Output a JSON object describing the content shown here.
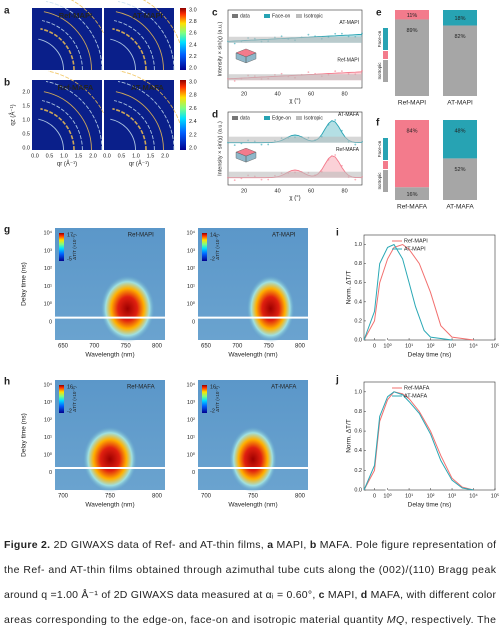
{
  "figure": {
    "panels": {
      "a": {
        "label": "a",
        "images": [
          "Ref-MAPI",
          "AT-MAPI"
        ],
        "colorbar_ticks": [
          "3.0",
          "2.8",
          "2.6",
          "2.4",
          "2.2",
          "2.0"
        ]
      },
      "b": {
        "label": "b",
        "images": [
          "Ref-MAFA",
          "AT-MAFA"
        ],
        "colorbar_ticks": [
          "3.0",
          "2.8",
          "2.6",
          "2.4",
          "2.2",
          "2.0"
        ],
        "y_label": "qz (Å⁻¹)",
        "yticks": [
          "0.0",
          "0.5",
          "1.0",
          "1.5",
          "2.0"
        ],
        "x_label": "qr (Å⁻¹)",
        "xticks": [
          "0.0",
          "0.5",
          "1.0",
          "1.5",
          "2.0"
        ]
      },
      "c": {
        "label": "c",
        "legend": [
          "data",
          "Face-on",
          "Isotropic"
        ],
        "curves": [
          "AT-MAPI",
          "Ref-MAPI"
        ],
        "y_label": "Intensity × sin(χ) (a.u.)",
        "x_label": "χ (°)",
        "xticks": [
          "20",
          "40",
          "60",
          "80"
        ]
      },
      "d": {
        "label": "d",
        "legend": [
          "data",
          "Edge-on",
          "Isotropic"
        ],
        "curves": [
          "AT-MAFA",
          "Ref-MAFA"
        ],
        "y_label": "Intensity × sin(χ) (a.u.)",
        "x_label": "χ (°)",
        "xticks": [
          "20",
          "40",
          "60",
          "80"
        ]
      },
      "e": {
        "label": "e",
        "categories": [
          "Ref-MAPI",
          "AT-MAPI"
        ],
        "series": [
          {
            "name": "Isotropic",
            "color": "#a6a6a6",
            "values": [
              89,
              82
            ],
            "value_labels": [
              "89%",
              "82%"
            ]
          },
          {
            "color": "#f37b8c",
            "values": [
              11,
              null
            ],
            "value_labels": [
              "11%",
              null
            ]
          },
          {
            "name": "Face-on",
            "color": "#27a3b3",
            "values": [
              null,
              18
            ],
            "value_labels": [
              null,
              "18%"
            ]
          }
        ]
      },
      "f": {
        "label": "f",
        "categories": [
          "Ref-MAFA",
          "AT-MAFA"
        ],
        "series": [
          {
            "name": "Isotropic",
            "color": "#a6a6a6",
            "values": [
              16,
              52
            ],
            "value_labels": [
              "16%",
              "52%"
            ]
          },
          {
            "color": "#f37b8c",
            "values": [
              84,
              null
            ],
            "value_labels": [
              "84%",
              null
            ]
          },
          {
            "name": "Face-on",
            "color": "#27a3b3",
            "values": [
              null,
              48
            ],
            "value_labels": [
              null,
              "48%"
            ]
          }
        ]
      },
      "g": {
        "label": "g",
        "maps": [
          {
            "name": "Ref-MAPI",
            "cmax": "17",
            "cmin": "-5"
          },
          {
            "name": "AT-MAPI",
            "cmax": "14",
            "cmin": "-2"
          }
        ],
        "colorbar_label": "ΔT/T (×10⁻³)",
        "y_label": "Delay time (ns)",
        "yticks": [
          "10⁴",
          "10³",
          "10²",
          "10¹",
          "10⁰",
          "0"
        ],
        "x_label": "Wavelength (nm)",
        "xticks": [
          "650",
          "700",
          "750",
          "800"
        ]
      },
      "h": {
        "label": "h",
        "maps": [
          {
            "name": "Ref-MAFA",
            "cmax": "16",
            "cmin": "-2"
          },
          {
            "name": "AT-MAFA",
            "cmax": "16",
            "cmin": "-2"
          }
        ],
        "colorbar_label": "ΔT/T (×10⁻³)",
        "y_label": "Delay time (ns)",
        "yticks": [
          "10⁴",
          "10³",
          "10²",
          "10¹",
          "10⁰",
          "0"
        ],
        "x_label": "Wavelength (nm)",
        "xticks": [
          "700",
          "750",
          "800"
        ]
      },
      "i": {
        "label": "i",
        "y_label": "Norm. ΔT/T",
        "x_label": "Delay time (ns)",
        "ylim": [
          0,
          1.1
        ],
        "yticks": [
          {
            "value": 0,
            "label": "0.0"
          },
          {
            "value": 0.2,
            "label": "0.2"
          },
          {
            "value": 0.4,
            "label": "0.4"
          },
          {
            "value": 0.6,
            "label": "0.6"
          },
          {
            "value": 0.8,
            "label": "0.8"
          },
          {
            "value": 1,
            "label": "1.0"
          }
        ],
        "xlim": [
          -1,
          100000
        ],
        "xticks": [
          {
            "value": 0,
            "label": "0"
          },
          {
            "value": 1,
            "label": "10⁰"
          },
          {
            "value": 10,
            "label": "10¹"
          },
          {
            "value": 100,
            "label": "10²"
          },
          {
            "value": 1000,
            "label": "10³"
          },
          {
            "value": 10000,
            "label": "10⁴"
          },
          {
            "value": 100000,
            "label": "10⁵"
          }
        ],
        "series": [
          {
            "name": "Ref-MAPI",
            "color": "#f2706f",
            "x": [
              -1,
              0,
              0.5,
              1,
              2,
              5,
              10,
              30,
              100,
              300,
              1000,
              10000
            ],
            "values": [
              0,
              0.2,
              0.6,
              0.85,
              0.97,
              1,
              0.95,
              0.8,
              0.5,
              0.15,
              0.03,
              0
            ]
          },
          {
            "name": "AT-MAPI",
            "color": "#2aa8b5",
            "x": [
              -1,
              0,
              0.5,
              1,
              2,
              5,
              10,
              20,
              50,
              100,
              1000
            ],
            "values": [
              0,
              0.3,
              0.8,
              0.97,
              1,
              0.85,
              0.6,
              0.35,
              0.1,
              0.03,
              0
            ]
          }
        ]
      },
      "j": {
        "label": "j",
        "y_label": "Norm. ΔT/T",
        "x_label": "Delay time (ns)",
        "ylim": [
          0,
          1.1
        ],
        "yticks": [
          {
            "value": 0,
            "label": "0.0"
          },
          {
            "value": 0.2,
            "label": "0.2"
          },
          {
            "value": 0.4,
            "label": "0.4"
          },
          {
            "value": 0.6,
            "label": "0.6"
          },
          {
            "value": 0.8,
            "label": "0.8"
          },
          {
            "value": 1,
            "label": "1.0"
          }
        ],
        "xlim": [
          -1,
          100000
        ],
        "xticks": [
          {
            "value": 0,
            "label": "0"
          },
          {
            "value": 1,
            "label": "10⁰"
          },
          {
            "value": 10,
            "label": "10¹"
          },
          {
            "value": 100,
            "label": "10²"
          },
          {
            "value": 1000,
            "label": "10³"
          },
          {
            "value": 10000,
            "label": "10⁴"
          },
          {
            "value": 100000,
            "label": "10⁵"
          }
        ],
        "series": [
          {
            "name": "Ref-MAFA",
            "color": "#f2706f",
            "x": [
              -1,
              0,
              0.5,
              1,
              2,
              5,
              10,
              30,
              100,
              300,
              1000,
              3000,
              10000
            ],
            "values": [
              0,
              0.2,
              0.7,
              0.92,
              1,
              0.98,
              0.93,
              0.8,
              0.6,
              0.35,
              0.12,
              0.03,
              0
            ]
          },
          {
            "name": "AT-MAFA",
            "color": "#2aa8b5",
            "x": [
              -1,
              0,
              0.5,
              1,
              2,
              5,
              10,
              30,
              100,
              300,
              1000,
              3000,
              10000
            ],
            "values": [
              0,
              0.25,
              0.75,
              0.95,
              1,
              0.97,
              0.9,
              0.78,
              0.57,
              0.3,
              0.1,
              0.02,
              0
            ]
          }
        ]
      }
    }
  },
  "caption": {
    "lines": [
      [
        {
          "text": "Figure 2.",
          "style": "bold"
        },
        {
          "text": " 2D GIWAXS data of Ref- and AT-thin films, "
        },
        {
          "text": "a",
          "style": "bold"
        },
        {
          "text": " MAPI, "
        },
        {
          "text": "b",
          "style": "bold"
        },
        {
          "text": " MAFA. Pole figure representation of"
        }
      ],
      [
        {
          "text": "the Ref- and AT-thin films obtained through azimuthal tube cuts along the (002)/(110) Bragg peak"
        }
      ],
      [
        {
          "text": "around q =1.00 Å⁻¹ of 2D GIWAXS data measured at αᵢ = 0.60°, "
        },
        {
          "text": "c",
          "style": "bold"
        },
        {
          "text": " MAPI, "
        },
        {
          "text": "d",
          "style": "bold"
        },
        {
          "text": " MAFA, with different color"
        }
      ],
      [
        {
          "text": "areas corresponding to the edge-on, face-on and isotropic material quantity "
        },
        {
          "text": "MQ",
          "style": "italic"
        },
        {
          "text": ", respectively. The"
        }
      ]
    ]
  }
}
